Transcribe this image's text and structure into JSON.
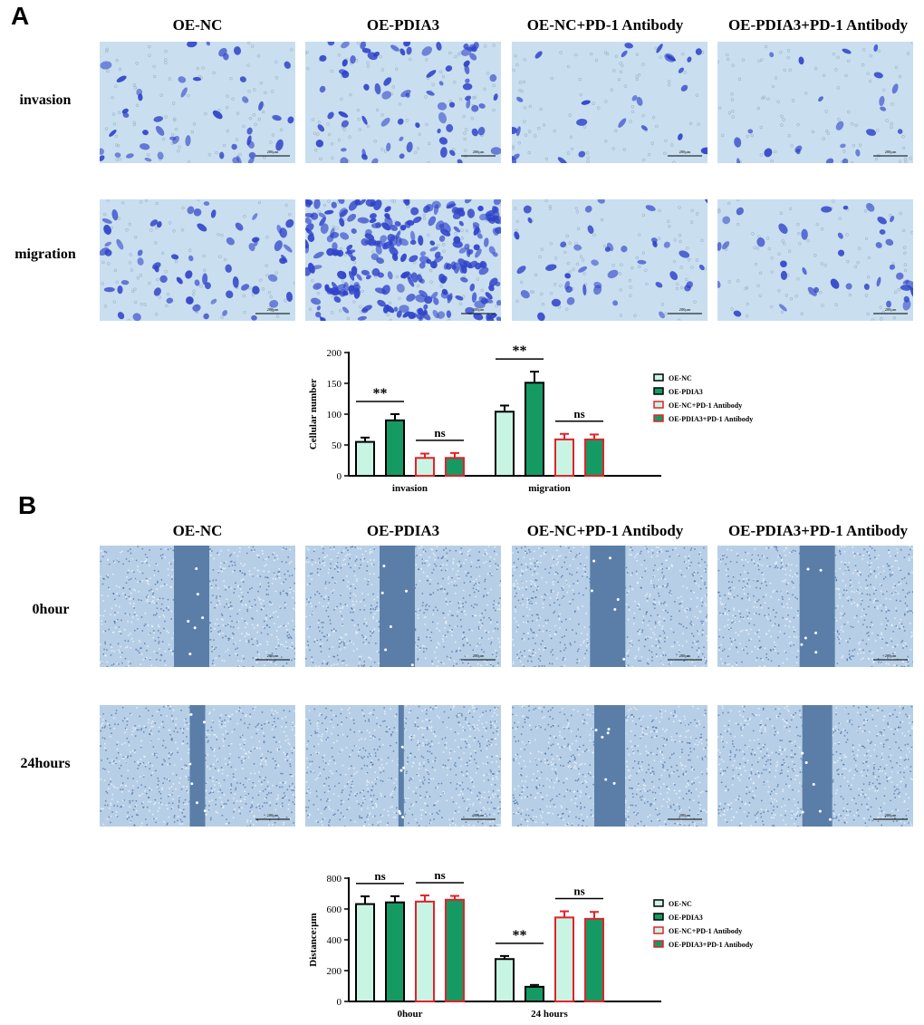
{
  "panels": [
    {
      "letter": "A"
    },
    {
      "letter": "B"
    }
  ],
  "groups": [
    "OE-NC",
    "OE-PDIA3",
    "OE-NC+PD-1 Antibody",
    "OE-PDIA3+PD-1 Antibody"
  ],
  "panelA_rows": [
    "invasion",
    "migration"
  ],
  "panelB_rows": [
    "0hour",
    "24hours"
  ],
  "scalebar_label": "200μm",
  "colors": {
    "stain_bg": "#c9dff0",
    "stain_cell": "#2f43c9",
    "scratch_bg": "#b7cfe6",
    "scratch_gap": "#5a7ea8",
    "fill_light": "#c8f5e3",
    "fill_green": "#159a63",
    "red_edge": "#e3212a"
  },
  "chart_data": [
    {
      "type": "bar",
      "categories": [
        "invasion",
        "migration"
      ],
      "ylabel": "Cellular number",
      "ylim": [
        0,
        200
      ],
      "yticks": [
        0,
        50,
        100,
        150,
        200
      ],
      "series": [
        {
          "name": "OE-NC",
          "values": [
            55,
            104
          ],
          "errors": [
            7,
            10
          ]
        },
        {
          "name": "OE-PDIA3",
          "values": [
            90,
            151
          ],
          "errors": [
            10,
            18
          ]
        },
        {
          "name": "OE-NC+PD-1 Antibody",
          "values": [
            29,
            59
          ],
          "errors": [
            7,
            9
          ]
        },
        {
          "name": "OE-PDIA3+PD-1 Antibody",
          "values": [
            29,
            59
          ],
          "errors": [
            8,
            8
          ]
        }
      ],
      "annotations": [
        {
          "text": "**",
          "category": 0,
          "between": [
            0,
            1
          ]
        },
        {
          "text": "ns",
          "category": 0,
          "between": [
            2,
            3
          ]
        },
        {
          "text": "**",
          "category": 1,
          "between": [
            0,
            1
          ]
        },
        {
          "text": "ns",
          "category": 1,
          "between": [
            2,
            3
          ]
        }
      ],
      "legend_position": "right"
    },
    {
      "type": "bar",
      "categories": [
        "0hour",
        "24 hours"
      ],
      "ylabel": "Distance:μm",
      "ylim": [
        0,
        800
      ],
      "yticks": [
        0,
        200,
        400,
        600,
        800
      ],
      "series": [
        {
          "name": "OE-NC",
          "values": [
            632,
            275
          ],
          "errors": [
            50,
            20
          ]
        },
        {
          "name": "OE-PDIA3",
          "values": [
            643,
            95
          ],
          "errors": [
            40,
            12
          ]
        },
        {
          "name": "OE-NC+PD-1 Antibody",
          "values": [
            648,
            545
          ],
          "errors": [
            40,
            40
          ]
        },
        {
          "name": "OE-PDIA3+PD-1 Antibody",
          "values": [
            660,
            536
          ],
          "errors": [
            25,
            45
          ]
        }
      ],
      "annotations": [
        {
          "text": "ns",
          "category": 0,
          "between": [
            0,
            1
          ]
        },
        {
          "text": "ns",
          "category": 0,
          "between": [
            2,
            3
          ]
        },
        {
          "text": "**",
          "category": 1,
          "between": [
            0,
            1
          ]
        },
        {
          "text": "ns",
          "category": 1,
          "between": [
            2,
            3
          ]
        }
      ],
      "legend_position": "right"
    }
  ]
}
